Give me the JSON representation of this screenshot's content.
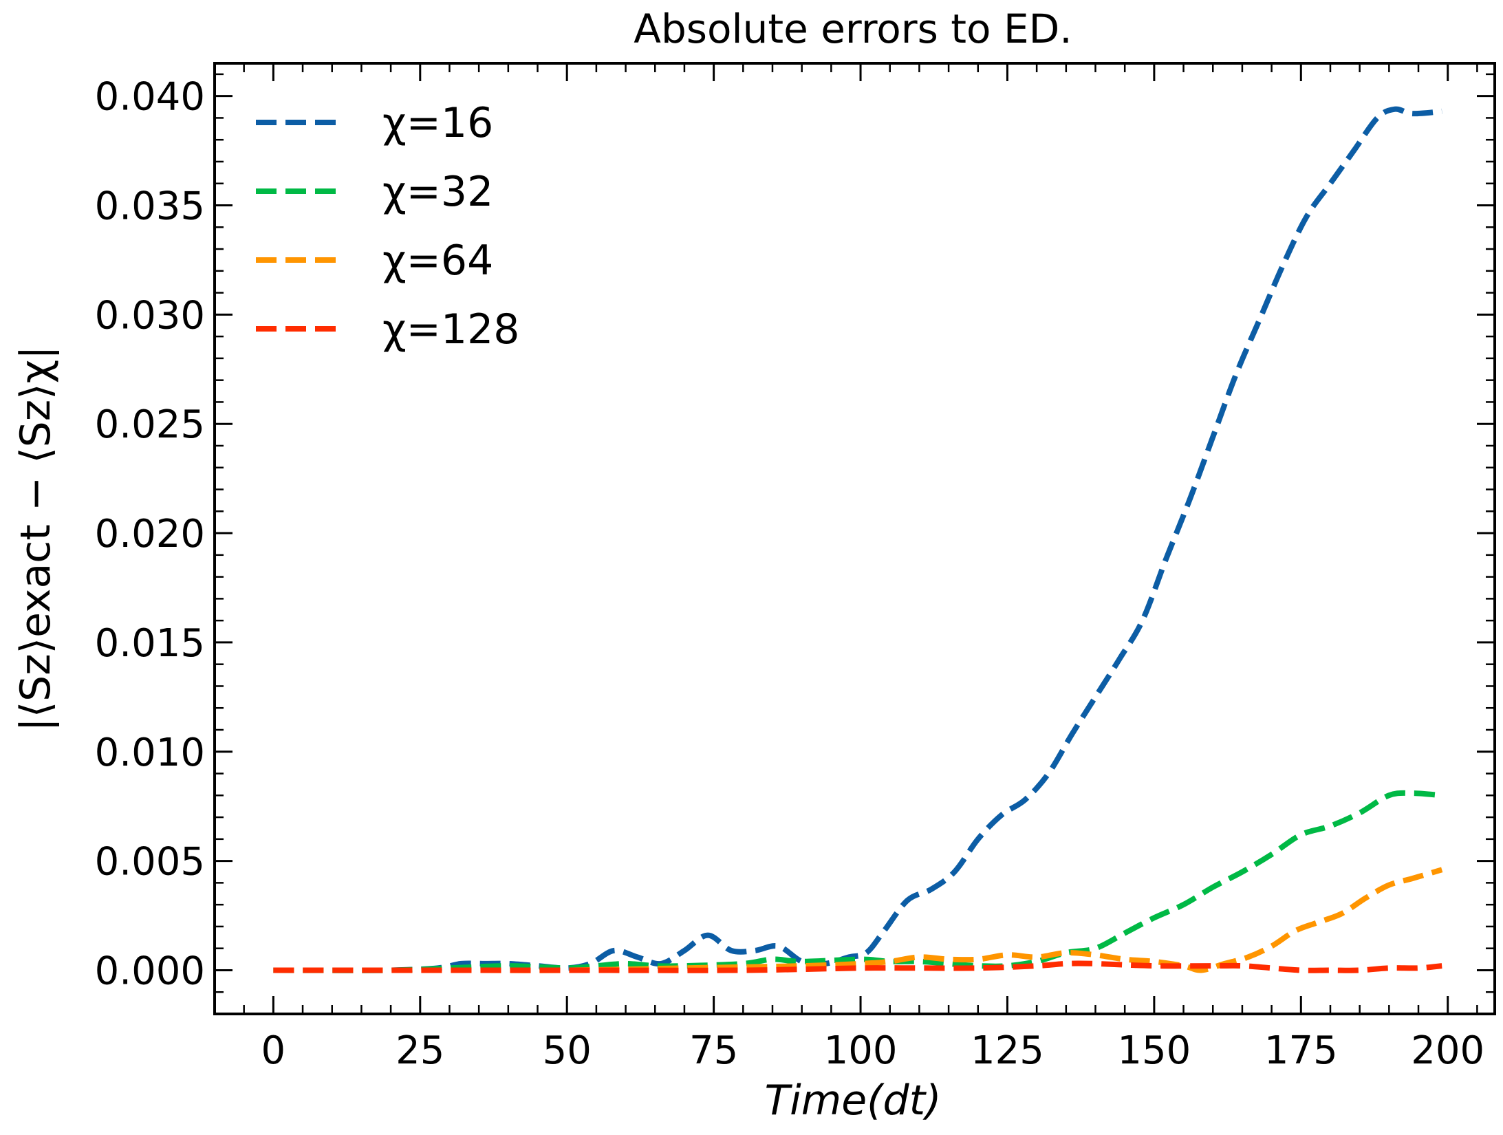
{
  "chart_data": {
    "type": "line",
    "title": "Absolute errors to ED.",
    "xlabel": "Time(dt)",
    "ylabel": "|⟨Sz⟩exact − ⟨Sz⟩χ|",
    "xlim": [
      -10,
      208
    ],
    "ylim": [
      -0.002,
      0.0415
    ],
    "x_ticks": [
      0,
      25,
      50,
      75,
      100,
      125,
      150,
      175,
      200
    ],
    "x_tick_labels": [
      "0",
      "25",
      "50",
      "75",
      "100",
      "125",
      "150",
      "175",
      "200"
    ],
    "y_ticks": [
      0.0,
      0.005,
      0.01,
      0.015,
      0.02,
      0.025,
      0.03,
      0.035,
      0.04
    ],
    "y_tick_labels": [
      "0.000",
      "0.005",
      "0.010",
      "0.015",
      "0.020",
      "0.025",
      "0.030",
      "0.035",
      "0.040"
    ],
    "grid": false,
    "legend_position": "top-left",
    "series": [
      {
        "name": "χ=16",
        "color": "#0c5da5",
        "x": [
          0,
          10,
          20,
          28,
          32,
          36,
          40,
          45,
          50,
          54,
          58,
          62,
          66,
          70,
          74,
          78,
          82,
          86,
          90,
          94,
          98,
          101,
          104,
          108,
          112,
          116,
          120,
          124,
          128,
          132,
          136,
          140,
          144,
          148,
          152,
          156,
          160,
          164,
          168,
          172,
          176,
          180,
          184,
          188,
          191,
          194,
          199
        ],
        "values": [
          0.0,
          0.0,
          0.0,
          0.0001,
          0.0003,
          0.0003,
          0.0003,
          0.0002,
          0.0001,
          0.0003,
          0.0009,
          0.0006,
          0.0003,
          0.0009,
          0.0016,
          0.0009,
          0.0009,
          0.0011,
          0.0004,
          0.0003,
          0.0006,
          0.0008,
          0.0018,
          0.0032,
          0.0037,
          0.0045,
          0.006,
          0.0071,
          0.0078,
          0.009,
          0.0108,
          0.0125,
          0.0142,
          0.016,
          0.0188,
          0.0215,
          0.0244,
          0.0273,
          0.0298,
          0.0323,
          0.0345,
          0.036,
          0.0375,
          0.039,
          0.0394,
          0.0392,
          0.0393
        ]
      },
      {
        "name": "χ=32",
        "color": "#00b945",
        "x": [
          0,
          20,
          30,
          40,
          50,
          55,
          60,
          65,
          70,
          80,
          85,
          90,
          100,
          105,
          110,
          115,
          120,
          125,
          130,
          135,
          140,
          145,
          150,
          155,
          160,
          165,
          170,
          175,
          180,
          185,
          190,
          194,
          199
        ],
        "values": [
          0.0,
          0.0,
          0.0001,
          0.0002,
          0.0001,
          0.0002,
          0.0003,
          0.0002,
          0.0002,
          0.0003,
          0.0005,
          0.0004,
          0.0005,
          0.0004,
          0.0004,
          0.0003,
          0.0002,
          0.0002,
          0.0004,
          0.0008,
          0.001,
          0.0017,
          0.0024,
          0.003,
          0.0038,
          0.0045,
          0.0053,
          0.0062,
          0.0066,
          0.0072,
          0.008,
          0.0081,
          0.008
        ]
      },
      {
        "name": "χ=64",
        "color": "#ff9500",
        "x": [
          0,
          30,
          50,
          70,
          90,
          100,
          105,
          110,
          115,
          120,
          125,
          130,
          135,
          140,
          145,
          150,
          155,
          158,
          162,
          166,
          170,
          174,
          178,
          182,
          186,
          190,
          194,
          199
        ],
        "values": [
          0.0,
          0.0,
          0.0,
          0.0001,
          0.0002,
          0.0003,
          0.0004,
          0.0006,
          0.0005,
          0.0005,
          0.0007,
          0.0006,
          0.0008,
          0.0007,
          0.0005,
          0.0004,
          0.0002,
          0.0,
          0.0003,
          0.0006,
          0.0011,
          0.0018,
          0.0022,
          0.0026,
          0.0033,
          0.0039,
          0.0042,
          0.0046
        ]
      },
      {
        "name": "χ=128",
        "color": "#ff2c00",
        "x": [
          0,
          50,
          80,
          100,
          110,
          120,
          130,
          135,
          140,
          150,
          160,
          165,
          170,
          175,
          180,
          185,
          190,
          195,
          199
        ],
        "values": [
          0.0,
          0.0,
          0.0,
          0.0001,
          0.0001,
          0.0001,
          0.0002,
          0.0003,
          0.0003,
          0.0002,
          0.0002,
          0.0002,
          0.0001,
          0.0,
          0.0,
          0.0,
          0.0001,
          0.0001,
          0.0002
        ]
      }
    ]
  }
}
